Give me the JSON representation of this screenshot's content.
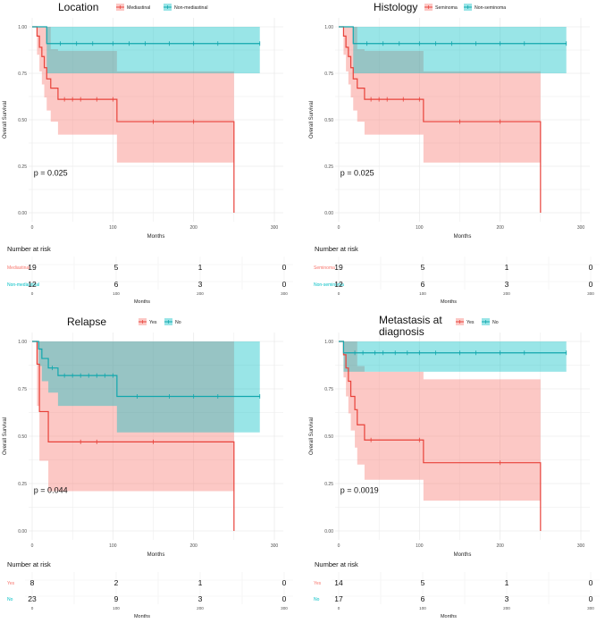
{
  "colors": {
    "red": "#F8766D",
    "cyan": "#00BFC4",
    "red_line": "#E8423A",
    "cyan_line": "#11A7AD"
  },
  "chart_data": [
    {
      "type": "km-survival",
      "title": "Location",
      "ylabel": "Overall Survival",
      "xlabel": "Months",
      "xlim": [
        0,
        300
      ],
      "ylim": [
        0,
        1
      ],
      "xticks": [
        "0",
        "100",
        "200",
        "300"
      ],
      "yticks": [
        "0.00",
        "0.25",
        "0.50",
        "0.75",
        "1.00"
      ],
      "pvalue": "p = 0.025",
      "risk_title": "Number at risk",
      "series": [
        {
          "name": "Mediastinal",
          "color": "#F8766D",
          "steps": [
            [
              0,
              1
            ],
            [
              6,
              0.95
            ],
            [
              9,
              0.89
            ],
            [
              12,
              0.84
            ],
            [
              15,
              0.78
            ],
            [
              18,
              0.72
            ],
            [
              23,
              0.67
            ],
            [
              32,
              0.61
            ],
            [
              105,
              0.49
            ],
            [
              250,
              0.49
            ],
            [
              250,
              0
            ]
          ],
          "band": [
            [
              0,
              1,
              1
            ],
            [
              6,
              0.85,
              1
            ],
            [
              9,
              0.76,
              1
            ],
            [
              12,
              0.69,
              1
            ],
            [
              15,
              0.62,
              1
            ],
            [
              18,
              0.55,
              1
            ],
            [
              23,
              0.49,
              0.88
            ],
            [
              32,
              0.42,
              0.87
            ],
            [
              105,
              0.27,
              0.76
            ],
            [
              250,
              0.27,
              0.76
            ]
          ],
          "censor": [
            40,
            50,
            60,
            80,
            100,
            150,
            200
          ],
          "risk": [
            "19",
            "5",
            "1",
            "0"
          ]
        },
        {
          "name": "Non-mediastinal",
          "color": "#00BFC4",
          "steps": [
            [
              0,
              1
            ],
            [
              18,
              0.91
            ],
            [
              282,
              0.91
            ]
          ],
          "band": [
            [
              0,
              1,
              1
            ],
            [
              18,
              0.75,
              1
            ],
            [
              282,
              0.75,
              1
            ]
          ],
          "censor": [
            35,
            55,
            75,
            100,
            120,
            140,
            170,
            200,
            230,
            282
          ],
          "risk": [
            "12",
            "6",
            "3",
            "0"
          ]
        }
      ]
    },
    {
      "type": "km-survival",
      "title": "Histology",
      "ylabel": "Overall Survival",
      "xlabel": "Months",
      "xlim": [
        0,
        300
      ],
      "ylim": [
        0,
        1
      ],
      "xticks": [
        "0",
        "100",
        "200",
        "300"
      ],
      "yticks": [
        "0.00",
        "0.25",
        "0.50",
        "0.75",
        "1.00"
      ],
      "pvalue": "p = 0.025",
      "risk_title": "Number at risk",
      "series": [
        {
          "name": "Seminoma",
          "color": "#F8766D",
          "steps": [
            [
              0,
              1
            ],
            [
              6,
              0.95
            ],
            [
              9,
              0.89
            ],
            [
              12,
              0.84
            ],
            [
              15,
              0.78
            ],
            [
              18,
              0.72
            ],
            [
              23,
              0.67
            ],
            [
              32,
              0.61
            ],
            [
              105,
              0.49
            ],
            [
              250,
              0.49
            ],
            [
              250,
              0
            ]
          ],
          "band": [
            [
              0,
              1,
              1
            ],
            [
              6,
              0.85,
              1
            ],
            [
              9,
              0.76,
              1
            ],
            [
              12,
              0.69,
              1
            ],
            [
              15,
              0.62,
              1
            ],
            [
              18,
              0.55,
              1
            ],
            [
              23,
              0.49,
              0.88
            ],
            [
              32,
              0.42,
              0.87
            ],
            [
              105,
              0.27,
              0.76
            ],
            [
              250,
              0.27,
              0.76
            ]
          ],
          "censor": [
            40,
            50,
            60,
            80,
            100,
            150,
            200
          ],
          "risk": [
            "19",
            "5",
            "1",
            "0"
          ]
        },
        {
          "name": "Non-seminoma",
          "color": "#00BFC4",
          "steps": [
            [
              0,
              1
            ],
            [
              18,
              0.91
            ],
            [
              282,
              0.91
            ]
          ],
          "band": [
            [
              0,
              1,
              1
            ],
            [
              18,
              0.75,
              1
            ],
            [
              282,
              0.75,
              1
            ]
          ],
          "censor": [
            35,
            55,
            75,
            100,
            120,
            140,
            170,
            200,
            230,
            282
          ],
          "risk": [
            "12",
            "6",
            "3",
            "0"
          ]
        }
      ]
    },
    {
      "type": "km-survival",
      "title": "Relapse",
      "ylabel": "Overall Survival",
      "xlabel": "Months",
      "xlim": [
        0,
        300
      ],
      "ylim": [
        0,
        1
      ],
      "xticks": [
        "0",
        "100",
        "200",
        "300"
      ],
      "yticks": [
        "0.00",
        "0.25",
        "0.50",
        "0.75",
        "1.00"
      ],
      "pvalue": "p = 0.044",
      "risk_title": "Number at risk",
      "series": [
        {
          "name": "Yes",
          "color": "#F8766D",
          "steps": [
            [
              0,
              1
            ],
            [
              6,
              0.88
            ],
            [
              9,
              0.63
            ],
            [
              20,
              0.47
            ],
            [
              250,
              0.47
            ],
            [
              250,
              0
            ]
          ],
          "band": [
            [
              0,
              1,
              1
            ],
            [
              6,
              0.66,
              1
            ],
            [
              9,
              0.37,
              1
            ],
            [
              20,
              0.21,
              1
            ],
            [
              250,
              0.21,
              1
            ]
          ],
          "censor": [
            60,
            80,
            150
          ],
          "risk": [
            "8",
            "2",
            "1",
            "0"
          ]
        },
        {
          "name": "No",
          "color": "#00BFC4",
          "steps": [
            [
              0,
              1
            ],
            [
              8,
              0.96
            ],
            [
              12,
              0.91
            ],
            [
              20,
              0.86
            ],
            [
              32,
              0.82
            ],
            [
              105,
              0.71
            ],
            [
              282,
              0.71
            ]
          ],
          "band": [
            [
              0,
              1,
              1
            ],
            [
              8,
              0.87,
              1
            ],
            [
              12,
              0.79,
              1
            ],
            [
              20,
              0.73,
              1
            ],
            [
              32,
              0.66,
              1
            ],
            [
              105,
              0.52,
              1
            ],
            [
              282,
              0.52,
              1
            ]
          ],
          "censor": [
            25,
            40,
            50,
            60,
            70,
            80,
            90,
            100,
            130,
            170,
            200,
            230,
            282
          ],
          "risk": [
            "23",
            "9",
            "3",
            "0"
          ]
        }
      ]
    },
    {
      "type": "km-survival",
      "title": "Metastasis at\ndiagnosis",
      "ylabel": "Overall Survival",
      "xlabel": "Months",
      "xlim": [
        0,
        300
      ],
      "ylim": [
        0,
        1
      ],
      "xticks": [
        "0",
        "100",
        "200",
        "300"
      ],
      "yticks": [
        "0.00",
        "0.25",
        "0.50",
        "0.75",
        "1.00"
      ],
      "pvalue": "p = 0.0019",
      "risk_title": "Number at risk",
      "series": [
        {
          "name": "Yes",
          "color": "#F8766D",
          "steps": [
            [
              0,
              1
            ],
            [
              6,
              0.93
            ],
            [
              9,
              0.86
            ],
            [
              12,
              0.79
            ],
            [
              15,
              0.71
            ],
            [
              20,
              0.64
            ],
            [
              23,
              0.56
            ],
            [
              32,
              0.48
            ],
            [
              105,
              0.36
            ],
            [
              250,
              0.36
            ],
            [
              250,
              0
            ]
          ],
          "band": [
            [
              0,
              1,
              1
            ],
            [
              6,
              0.81,
              1
            ],
            [
              9,
              0.71,
              1
            ],
            [
              12,
              0.62,
              1
            ],
            [
              15,
              0.53,
              1
            ],
            [
              20,
              0.44,
              1
            ],
            [
              23,
              0.35,
              0.87
            ],
            [
              32,
              0.27,
              0.84
            ],
            [
              105,
              0.16,
              0.8
            ],
            [
              250,
              0.16,
              0.8
            ]
          ],
          "censor": [
            40,
            100,
            200
          ],
          "risk": [
            "14",
            "5",
            "1",
            "0"
          ]
        },
        {
          "name": "No",
          "color": "#00BFC4",
          "steps": [
            [
              0,
              1
            ],
            [
              6,
              0.94
            ],
            [
              282,
              0.94
            ]
          ],
          "band": [
            [
              0,
              1,
              1
            ],
            [
              6,
              0.84,
              1
            ],
            [
              282,
              0.84,
              1
            ]
          ],
          "censor": [
            20,
            30,
            45,
            55,
            70,
            85,
            100,
            120,
            150,
            170,
            200,
            230,
            282
          ],
          "risk": [
            "17",
            "6",
            "3",
            "0"
          ]
        }
      ]
    }
  ]
}
